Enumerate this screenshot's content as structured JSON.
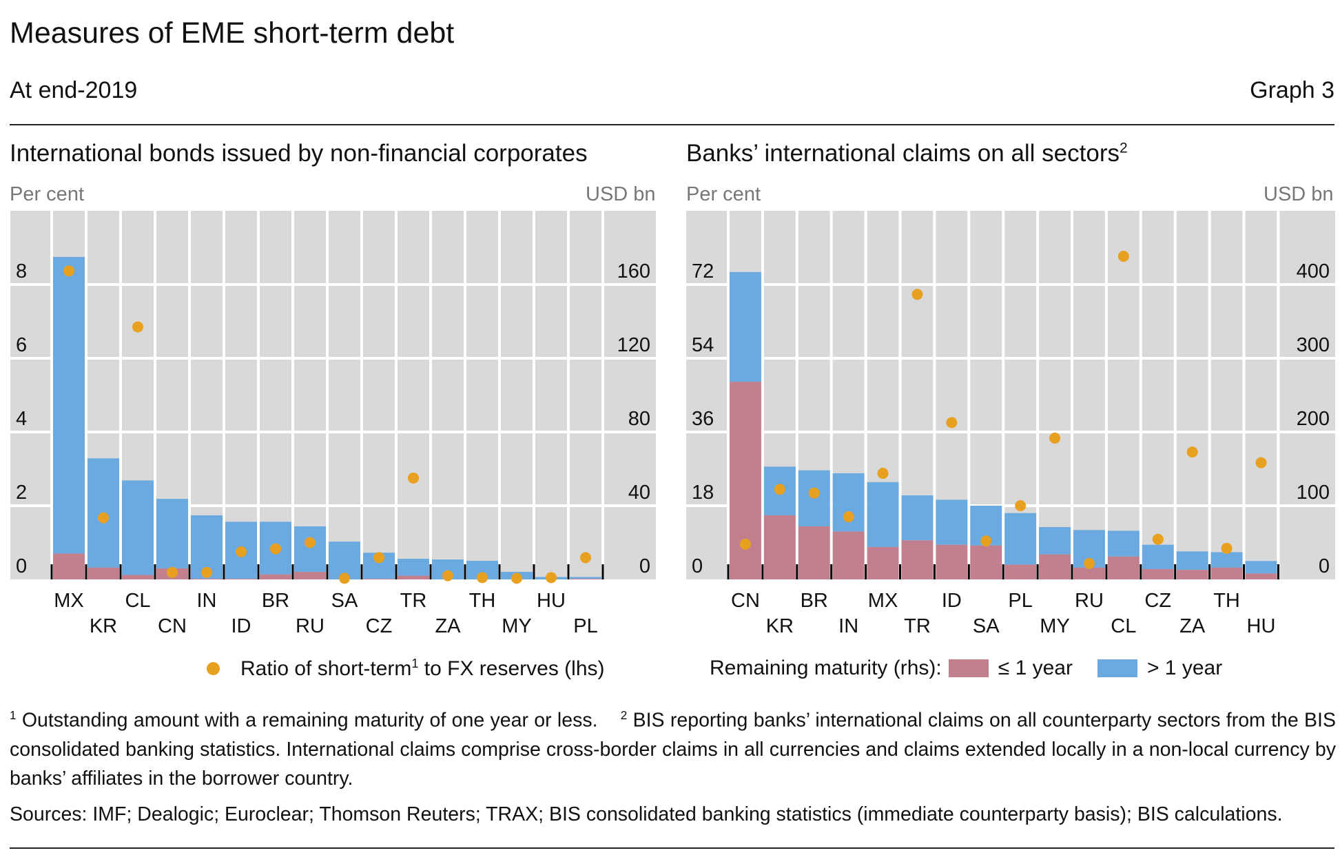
{
  "header": {
    "title": "Measures of EME short-term debt",
    "subtitle": "At end-2019",
    "graph_number": "Graph 3"
  },
  "colors": {
    "short": "#c2808e",
    "long": "#6aaae0",
    "ratio": "#e8a020",
    "plot_bg": "#d9d9d9"
  },
  "chart_data": [
    {
      "type": "bar",
      "title": "International bonds issued by non-financial corporates",
      "ylabel_left": "Per cent",
      "ylabel_right": "USD bn",
      "ylim_left": [
        0,
        10
      ],
      "ylim_right": [
        0,
        200
      ],
      "yticks_left": [
        "0",
        "2",
        "4",
        "6",
        "8"
      ],
      "yticks_right": [
        "0",
        "40",
        "80",
        "120",
        "160"
      ],
      "categories": [
        "MX",
        "KR",
        "CL",
        "CN",
        "IN",
        "ID",
        "BR",
        "RU",
        "SA",
        "CZ",
        "TR",
        "ZA",
        "TH",
        "MY",
        "HU",
        "PL"
      ],
      "series": [
        {
          "name": "≤ 1 year",
          "axis": "right",
          "type": "stacked-bar",
          "values": [
            14,
            6.4,
            2.4,
            6,
            0.4,
            0.4,
            2.7,
            4.1,
            0,
            0.4,
            2,
            0,
            0,
            0,
            0,
            0.4
          ]
        },
        {
          "name": "> 1 year",
          "axis": "right",
          "type": "stacked-bar",
          "values": [
            161,
            59.3,
            51.3,
            37.7,
            34.4,
            30.9,
            28.6,
            24.7,
            20.5,
            14.1,
            9.2,
            10.8,
            10.1,
            4.1,
            1.3,
            0.9
          ]
        },
        {
          "name": "Ratio of short-term to FX reserves (lhs)",
          "axis": "left",
          "type": "scatter",
          "values": [
            8.37,
            1.67,
            6.85,
            0.19,
            0.19,
            0.75,
            0.83,
            1.0,
            0.03,
            0.59,
            2.75,
            0.1,
            0.05,
            0.03,
            0.05,
            0.59
          ]
        }
      ],
      "legend": {
        "text": "Ratio of short-term",
        "sup": "1",
        "text_after": " to FX reserves (lhs)"
      }
    },
    {
      "type": "bar",
      "title": "Banks’ international claims on all sectors",
      "title_sup": "2",
      "ylabel_left": "Per cent",
      "ylabel_right": "USD bn",
      "ylim_left": [
        0,
        90
      ],
      "ylim_right": [
        0,
        500
      ],
      "yticks_left": [
        "0",
        "18",
        "36",
        "54",
        "72"
      ],
      "yticks_right": [
        "0",
        "100",
        "200",
        "300",
        "400"
      ],
      "categories": [
        "CN",
        "KR",
        "BR",
        "IN",
        "MX",
        "TR",
        "ID",
        "SA",
        "PL",
        "MY",
        "RU",
        "CL",
        "CZ",
        "ZA",
        "TH",
        "HU"
      ],
      "series": [
        {
          "name": "≤ 1 year",
          "axis": "right",
          "type": "stacked-bar",
          "values": [
            268,
            87,
            72,
            65,
            44,
            53,
            47,
            46,
            20,
            34,
            16,
            31,
            14,
            13,
            16,
            8
          ]
        },
        {
          "name": "> 1 year",
          "axis": "right",
          "type": "stacked-bar",
          "values": [
            149,
            66,
            76,
            79,
            88,
            61,
            61,
            54,
            70,
            37,
            51,
            35,
            33,
            25,
            21,
            17
          ]
        },
        {
          "name": "Ratio of short-term to FX reserves (lhs)",
          "axis": "left",
          "type": "scatter",
          "values": [
            8.6,
            22.0,
            21.1,
            15.3,
            25.9,
            69.6,
            38.3,
            9.4,
            18.0,
            34.5,
            3.9,
            78.9,
            9.8,
            31.1,
            7.6,
            28.5
          ]
        }
      ],
      "legend": {
        "label": "Remaining maturity (rhs):",
        "short": "≤ 1 year",
        "long": "> 1 year"
      }
    }
  ],
  "footnotes": {
    "n1": "1",
    "t1": " Outstanding amount with a remaining maturity of one year or less.",
    "n2": "2",
    "t2": " BIS reporting banks’ international claims on all counterparty sectors from the BIS consolidated banking statistics. International claims comprise cross-border claims in all currencies and claims extended locally in a non-local currency by banks’ affiliates in the borrower country."
  },
  "sources": "Sources: IMF; Dealogic; Euroclear; Thomson Reuters; TRAX; BIS consolidated banking statistics (immediate counterparty basis); BIS calculations."
}
